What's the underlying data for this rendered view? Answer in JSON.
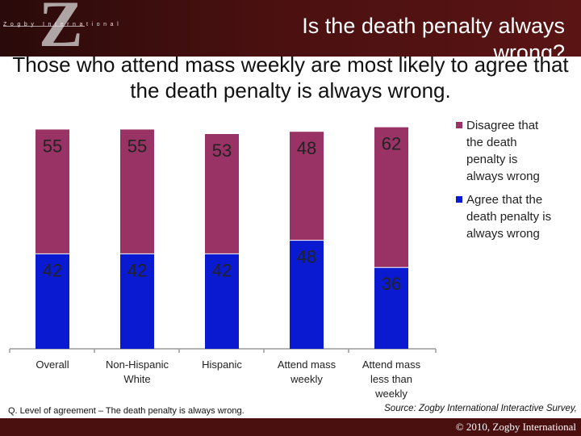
{
  "header": {
    "logo_letter": "Z",
    "logo_text": "Zogby International",
    "title": "Is the death penalty always wrong?"
  },
  "subtitle": "Those who attend mass weekly are most likely to agree that the death penalty is always wrong.",
  "footnote": "Q. Level of agreement – The death penalty is always wrong.",
  "source": "Source: Zogby International Interactive Survey,",
  "copyright": "© 2010, Zogby International",
  "colors": {
    "header_bg": "#4a1010",
    "disagree": "#993366",
    "agree": "#0a1ad0"
  },
  "chart_data": {
    "type": "bar",
    "stacked": true,
    "categories": [
      [
        "Overall"
      ],
      [
        "Non-Hispanic",
        "White"
      ],
      [
        "Hispanic"
      ],
      [
        "Attend mass",
        "weekly"
      ],
      [
        "Attend mass",
        "less than",
        "weekly"
      ]
    ],
    "series": [
      {
        "name": "Agree that the death penalty is always wrong",
        "color": "#0a1ad0",
        "values": [
          42,
          42,
          42,
          48,
          36
        ]
      },
      {
        "name": "Disagree that the death penalty is always wrong",
        "color": "#993366",
        "values": [
          55,
          55,
          53,
          48,
          62
        ]
      }
    ],
    "legend": {
      "position": "right",
      "entries": [
        {
          "label": [
            "Disagree that",
            "the death",
            "penalty is",
            "always wrong"
          ],
          "color": "#993366"
        },
        {
          "label": [
            "Agree that the",
            "death penalty is",
            "always wrong"
          ],
          "color": "#0a1ad0"
        }
      ]
    },
    "ylim": [
      0,
      100
    ],
    "grid": false,
    "title": "",
    "xlabel": "",
    "ylabel": ""
  }
}
